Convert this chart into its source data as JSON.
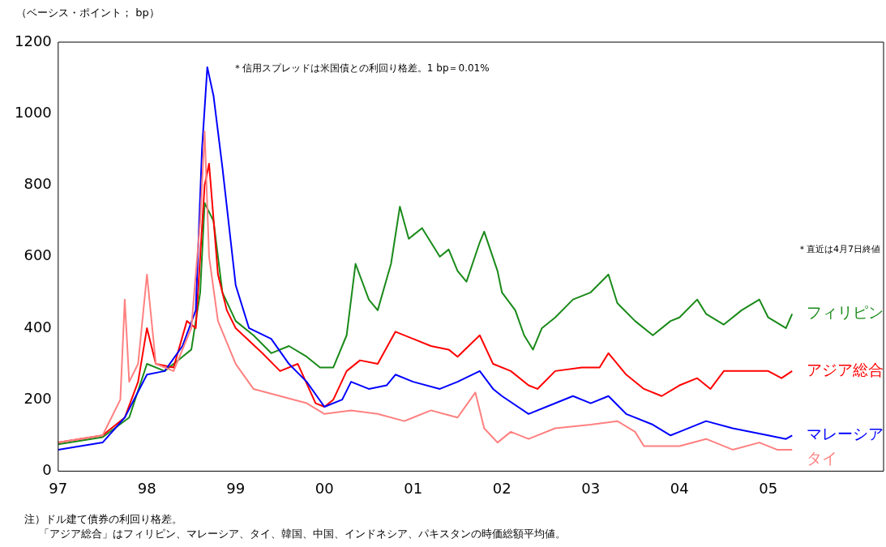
{
  "chart_data": {
    "type": "line",
    "ylabel": "（ベーシス・ポイント； bp）",
    "annotations": [
      "＊信用スプレッドは米国債との利回り格差。1 bp＝0.01%",
      "＊直近は4月7日終値",
      "注）ドル建て債券の利回り格差。",
      "「アジア総合」はフィリピン、マレーシア、タイ、韓国、中国、インドネシア、パキスタンの時価総額平均値。"
    ],
    "xlim": [
      1997,
      2006.3
    ],
    "xticks": [
      {
        "value": 1997,
        "label": "97"
      },
      {
        "value": 1998,
        "label": "98"
      },
      {
        "value": 1999,
        "label": "99"
      },
      {
        "value": 2000,
        "label": "00"
      },
      {
        "value": 2001,
        "label": "01"
      },
      {
        "value": 2002,
        "label": "02"
      },
      {
        "value": 2003,
        "label": "03"
      },
      {
        "value": 2004,
        "label": "04"
      },
      {
        "value": 2005,
        "label": "05"
      }
    ],
    "ylim": [
      0,
      1200
    ],
    "yticks": [
      0,
      200,
      400,
      600,
      800,
      1000,
      1200
    ],
    "grid": false,
    "legend": false,
    "marker": "none",
    "line_style": "solid",
    "series": [
      {
        "name": "タイ",
        "color": "#ff8080",
        "x": [
          1997,
          1997.5,
          1997.7,
          1997.75,
          1997.8,
          1997.9,
          1998,
          1998.1,
          1998.3,
          1998.5,
          1998.6,
          1998.65,
          1998.7,
          1998.8,
          1999,
          1999.2,
          1999.5,
          1999.8,
          2000,
          2000.3,
          2000.6,
          2000.9,
          2001.2,
          2001.5,
          2001.7,
          2001.8,
          2001.95,
          2002.1,
          2002.3,
          2002.6,
          2003,
          2003.3,
          2003.5,
          2003.6,
          2004,
          2004.3,
          2004.6,
          2004.9,
          2005.1,
          2005.27
        ],
        "values": [
          80,
          100,
          200,
          480,
          250,
          300,
          550,
          300,
          280,
          400,
          700,
          950,
          600,
          420,
          300,
          230,
          210,
          190,
          160,
          170,
          160,
          140,
          170,
          150,
          220,
          120,
          80,
          110,
          90,
          120,
          130,
          140,
          110,
          70,
          70,
          90,
          60,
          80,
          60,
          60
        ]
      },
      {
        "name": "マレーシア",
        "color": "#0000ff",
        "x": [
          1997,
          1997.5,
          1997.75,
          1998,
          1998.2,
          1998.4,
          1998.55,
          1998.62,
          1998.68,
          1998.75,
          1998.85,
          1999,
          1999.15,
          1999.4,
          1999.6,
          1999.8,
          2000,
          2000.2,
          2000.3,
          2000.5,
          2000.7,
          2000.8,
          2001,
          2001.3,
          2001.5,
          2001.75,
          2001.9,
          2002,
          2002.3,
          2002.5,
          2002.8,
          2003,
          2003.2,
          2003.4,
          2003.7,
          2003.9,
          2004,
          2004.3,
          2004.6,
          2005,
          2005.2,
          2005.27
        ],
        "values": [
          60,
          80,
          150,
          270,
          280,
          350,
          450,
          900,
          1130,
          1050,
          850,
          520,
          400,
          370,
          300,
          250,
          180,
          200,
          250,
          230,
          240,
          270,
          250,
          230,
          250,
          280,
          230,
          210,
          160,
          180,
          210,
          190,
          210,
          160,
          130,
          100,
          110,
          140,
          120,
          100,
          90,
          100
        ]
      },
      {
        "name": "アジア総合",
        "color": "#ff0000",
        "x": [
          1997,
          1997.5,
          1997.75,
          1997.9,
          1998,
          1998.1,
          1998.3,
          1998.45,
          1998.55,
          1998.65,
          1998.7,
          1998.8,
          1998.9,
          1999,
          1999.3,
          1999.5,
          1999.7,
          1999.9,
          2000,
          2000.1,
          2000.25,
          2000.4,
          2000.6,
          2000.8,
          2001,
          2001.2,
          2001.4,
          2001.5,
          2001.75,
          2001.9,
          2002.1,
          2002.3,
          2002.4,
          2002.6,
          2002.9,
          2003.1,
          2003.2,
          2003.4,
          2003.6,
          2003.8,
          2004,
          2004.2,
          2004.35,
          2004.5,
          2004.8,
          2005,
          2005.15,
          2005.27
        ],
        "values": [
          80,
          100,
          150,
          250,
          400,
          300,
          290,
          420,
          400,
          800,
          860,
          550,
          450,
          400,
          330,
          280,
          300,
          190,
          180,
          200,
          280,
          310,
          300,
          390,
          370,
          350,
          340,
          320,
          380,
          300,
          280,
          240,
          230,
          280,
          290,
          290,
          330,
          270,
          230,
          210,
          240,
          260,
          230,
          280,
          280,
          280,
          260,
          280
        ]
      },
      {
        "name": "フィリピン",
        "color": "#1a8a1a",
        "x": [
          1997,
          1997.5,
          1997.8,
          1998,
          1998.2,
          1998.4,
          1998.5,
          1998.6,
          1998.65,
          1998.75,
          1998.85,
          1999,
          1999.2,
          1999.4,
          1999.6,
          1999.8,
          1999.95,
          2000.1,
          2000.25,
          2000.35,
          2000.5,
          2000.6,
          2000.75,
          2000.85,
          2000.95,
          2001.1,
          2001.3,
          2001.4,
          2001.5,
          2001.6,
          2001.75,
          2001.8,
          2001.95,
          2002,
          2002.15,
          2002.25,
          2002.35,
          2002.45,
          2002.6,
          2002.8,
          2003,
          2003.2,
          2003.3,
          2003.5,
          2003.7,
          2003.9,
          2004,
          2004.2,
          2004.3,
          2004.5,
          2004.7,
          2004.9,
          2005,
          2005.2,
          2005.27
        ],
        "values": [
          75,
          95,
          150,
          300,
          280,
          320,
          340,
          500,
          750,
          700,
          500,
          420,
          380,
          330,
          350,
          320,
          290,
          290,
          380,
          580,
          480,
          450,
          580,
          740,
          650,
          680,
          600,
          620,
          560,
          530,
          640,
          670,
          560,
          500,
          450,
          380,
          340,
          400,
          430,
          480,
          500,
          550,
          470,
          420,
          380,
          420,
          430,
          480,
          440,
          410,
          450,
          480,
          430,
          400,
          440
        ]
      }
    ]
  }
}
